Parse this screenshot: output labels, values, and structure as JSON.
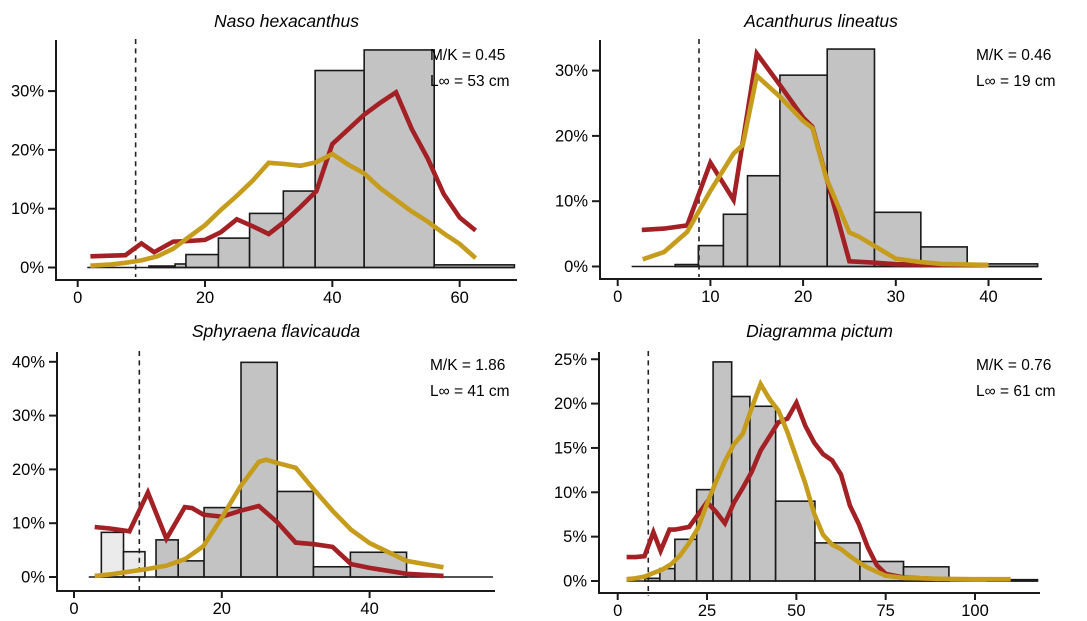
{
  "figure": {
    "background": "#FFFFFF"
  },
  "colors": {
    "red": "#A32025",
    "gold": "#C69C1D",
    "bar_fill": "#C3C3C3",
    "bar_fill_light": "#EBEBEB",
    "bar_stroke": "#1A1A1A",
    "axis": "#1A1A1A",
    "dashed": "#222222",
    "text": "#000000"
  },
  "chart_data": [
    {
      "type": "bar",
      "title": "Naso hexacanthus",
      "mk_label": "M/K = 0.45",
      "linf_label": "L∞ = 53 cm",
      "xlabel": "",
      "ylabel": "",
      "x_tick_values": [
        0,
        20,
        40,
        60
      ],
      "x_tick_labels": [
        "0",
        "20",
        "40",
        "60"
      ],
      "y_tick_values": [
        0,
        10,
        20,
        30
      ],
      "y_tick_labels": [
        "0%",
        "10%",
        "20%",
        "30%"
      ],
      "xlim": [
        -3.4,
        70
      ],
      "ylim": [
        0,
        40
      ],
      "dashed_x": 9.1,
      "baseline_range": [
        1.5,
        68.6
      ],
      "bars": [
        [
          11.2,
          15.3,
          0.25
        ],
        [
          15.3,
          17.0,
          0.6
        ],
        [
          17.0,
          22.1,
          2.2
        ],
        [
          22.1,
          27.0,
          5.0
        ],
        [
          27.0,
          32.3,
          9.2
        ],
        [
          32.3,
          37.3,
          13.0
        ],
        [
          37.3,
          45.0,
          33.5
        ],
        [
          45.0,
          56.0,
          37.0
        ],
        [
          56.0,
          68.6,
          0.45
        ]
      ],
      "red_line": [
        [
          2,
          1.9
        ],
        [
          5,
          2.0
        ],
        [
          7.5,
          2.1
        ],
        [
          10,
          4.1
        ],
        [
          12,
          2.6
        ],
        [
          15,
          4.4
        ],
        [
          17.5,
          4.5
        ],
        [
          20,
          4.7
        ],
        [
          22.5,
          6.0
        ],
        [
          25,
          8.2
        ],
        [
          27.5,
          7.0
        ],
        [
          30,
          5.7
        ],
        [
          32.5,
          7.8
        ],
        [
          35,
          10.3
        ],
        [
          37.5,
          13.0
        ],
        [
          40,
          21.0
        ],
        [
          42.5,
          23.5
        ],
        [
          45,
          26.0
        ],
        [
          47.5,
          28.0
        ],
        [
          50,
          29.8
        ],
        [
          52.5,
          23.5
        ],
        [
          55,
          18.5
        ],
        [
          57.5,
          12.5
        ],
        [
          60,
          8.5
        ],
        [
          62.5,
          6.3
        ]
      ],
      "gold_line": [
        [
          2,
          0.3
        ],
        [
          5,
          0.5
        ],
        [
          7.5,
          0.8
        ],
        [
          10,
          1.2
        ],
        [
          12.5,
          1.9
        ],
        [
          15,
          3.2
        ],
        [
          17.5,
          5.2
        ],
        [
          20,
          7.2
        ],
        [
          22.5,
          9.8
        ],
        [
          25,
          12.2
        ],
        [
          27.5,
          14.8
        ],
        [
          30,
          17.8
        ],
        [
          32.5,
          17.6
        ],
        [
          35,
          17.3
        ],
        [
          37.5,
          17.9
        ],
        [
          40,
          19.3
        ],
        [
          42.5,
          17.5
        ],
        [
          45,
          16.0
        ],
        [
          47.5,
          13.5
        ],
        [
          50,
          11.5
        ],
        [
          52.5,
          9.5
        ],
        [
          55,
          7.8
        ],
        [
          57.5,
          5.8
        ],
        [
          60,
          4.0
        ],
        [
          62.5,
          1.6
        ]
      ]
    },
    {
      "type": "bar",
      "title": "Acanthurus lineatus",
      "mk_label": "M/K = 0.46",
      "linf_label": "L∞ = 19 cm",
      "xlabel": "",
      "ylabel": "",
      "x_tick_values": [
        0,
        10,
        20,
        30,
        40
      ],
      "x_tick_labels": [
        "0",
        "10",
        "20",
        "30",
        "40"
      ],
      "y_tick_values": [
        0,
        10,
        20,
        30
      ],
      "y_tick_labels": [
        "0%",
        "10%",
        "20%",
        "30%"
      ],
      "xlim": [
        -3.5,
        46
      ],
      "ylim": [
        0,
        35
      ],
      "dashed_x": 8.77,
      "baseline_range": [
        1.5,
        45.3
      ],
      "bars": [
        [
          6.2,
          8.7,
          0.3
        ],
        [
          8.7,
          11.4,
          3.2
        ],
        [
          11.4,
          14.0,
          8.0
        ],
        [
          14.0,
          17.5,
          13.9
        ],
        [
          17.5,
          22.6,
          29.3
        ],
        [
          22.6,
          27.7,
          33.3
        ],
        [
          27.7,
          32.7,
          8.3
        ],
        [
          32.7,
          37.7,
          3.0
        ],
        [
          37.7,
          45.3,
          0.4
        ]
      ],
      "red_line": [
        [
          2.6,
          5.6
        ],
        [
          5,
          5.8
        ],
        [
          7.5,
          6.3
        ],
        [
          10,
          15.9
        ],
        [
          12.5,
          10.2
        ],
        [
          15,
          32.6
        ],
        [
          17.5,
          27.8
        ],
        [
          20,
          22.8
        ],
        [
          21,
          21.4
        ],
        [
          25,
          0.8
        ],
        [
          27.5,
          0.6
        ],
        [
          30,
          0.35
        ],
        [
          35,
          0.25
        ],
        [
          40,
          0.2
        ]
      ],
      "gold_line": [
        [
          2.7,
          1.1
        ],
        [
          5,
          2.2
        ],
        [
          7.5,
          5.3
        ],
        [
          10,
          11.6
        ],
        [
          12.5,
          17.3
        ],
        [
          13.5,
          18.6
        ],
        [
          15,
          29.2
        ],
        [
          17.5,
          26.0
        ],
        [
          20,
          22.3
        ],
        [
          21,
          21.2
        ],
        [
          22.5,
          13.5
        ],
        [
          25,
          5.2
        ],
        [
          26,
          4.6
        ],
        [
          30,
          1.2
        ],
        [
          32.5,
          0.7
        ],
        [
          35,
          0.4
        ],
        [
          40,
          0.25
        ]
      ]
    },
    {
      "type": "bar",
      "title": "Sphyraena flavicauda",
      "mk_label": "M/K = 1.86",
      "linf_label": "L∞ = 41 cm",
      "xlabel": "",
      "ylabel": "",
      "x_tick_values": [
        0,
        20,
        40
      ],
      "x_tick_labels": [
        "0",
        "20",
        "40"
      ],
      "y_tick_values": [
        0,
        10,
        20,
        30,
        40
      ],
      "y_tick_labels": [
        "0%",
        "10%",
        "20%",
        "30%",
        "40%"
      ],
      "xlim": [
        -2.3,
        57
      ],
      "ylim": [
        0,
        42
      ],
      "dashed_x": 8.84,
      "baseline_range": [
        2,
        56.7
      ],
      "bars": [
        [
          3.7,
          6.7,
          8.3,
          "light"
        ],
        [
          6.7,
          9.6,
          4.7,
          "light"
        ],
        [
          11.1,
          14.1,
          6.9
        ],
        [
          14.1,
          17.6,
          3.0
        ],
        [
          17.6,
          22.6,
          12.9
        ],
        [
          22.6,
          27.5,
          39.9
        ],
        [
          27.5,
          32.4,
          15.9
        ],
        [
          32.4,
          37.4,
          1.9
        ],
        [
          37.4,
          45.0,
          4.6
        ]
      ],
      "red_line": [
        [
          2.8,
          9.3
        ],
        [
          5,
          9.0
        ],
        [
          7.5,
          8.5
        ],
        [
          10,
          15.7
        ],
        [
          12.5,
          7.1
        ],
        [
          15,
          13.0
        ],
        [
          16,
          12.8
        ],
        [
          17.5,
          11.6
        ],
        [
          20,
          11.2
        ],
        [
          22.5,
          12.3
        ],
        [
          25,
          13.2
        ],
        [
          27.5,
          10.2
        ],
        [
          30,
          6.4
        ],
        [
          32.5,
          6.1
        ],
        [
          35,
          5.6
        ],
        [
          37.5,
          2.4
        ],
        [
          40,
          1.7
        ],
        [
          45,
          0.6
        ],
        [
          50,
          0.2
        ]
      ],
      "gold_line": [
        [
          2.8,
          0.2
        ],
        [
          5,
          0.5
        ],
        [
          7.5,
          1.0
        ],
        [
          10,
          1.5
        ],
        [
          12.5,
          2.1
        ],
        [
          15,
          3.3
        ],
        [
          17.5,
          5.7
        ],
        [
          20,
          11.0
        ],
        [
          22.5,
          16.8
        ],
        [
          25,
          21.4
        ],
        [
          26,
          21.8
        ],
        [
          27.5,
          21.2
        ],
        [
          30,
          20.3
        ],
        [
          32.5,
          16.2
        ],
        [
          35,
          12.3
        ],
        [
          37.5,
          8.8
        ],
        [
          40,
          6.3
        ],
        [
          45,
          3.0
        ],
        [
          50,
          1.8
        ]
      ]
    },
    {
      "type": "bar",
      "title": "Diagramma pictum",
      "mk_label": "M/K = 0.76",
      "linf_label": "L∞ = 61 cm",
      "xlabel": "",
      "ylabel": "",
      "x_tick_values": [
        0,
        25,
        50,
        75,
        100
      ],
      "x_tick_labels": [
        "0",
        "25",
        "50",
        "75",
        "100"
      ],
      "y_tick_values": [
        0,
        5,
        10,
        15,
        20,
        25
      ],
      "y_tick_labels": [
        "0%",
        "5%",
        "10%",
        "15%",
        "20%",
        "25%"
      ],
      "xlim": [
        -5,
        118
      ],
      "ylim": [
        0,
        26
      ],
      "dashed_x": 8.56,
      "baseline_range": [
        2.5,
        117.5
      ],
      "bars": [
        [
          7.6,
          11.8,
          0.3
        ],
        [
          11.8,
          16.0,
          1.4
        ],
        [
          16.0,
          22.1,
          4.7
        ],
        [
          22.1,
          26.7,
          10.3
        ],
        [
          26.7,
          31.9,
          24.7
        ],
        [
          31.9,
          37.0,
          20.8
        ],
        [
          37.0,
          44.2,
          19.7
        ],
        [
          44.2,
          55.2,
          9.0
        ],
        [
          55.2,
          67.8,
          4.3
        ],
        [
          67.8,
          80.0,
          2.2
        ],
        [
          80.0,
          92.7,
          1.6
        ],
        [
          103.5,
          117.5,
          0.15
        ]
      ],
      "red_line": [
        [
          2.5,
          2.7
        ],
        [
          5,
          2.7
        ],
        [
          7.5,
          2.8
        ],
        [
          10,
          5.5
        ],
        [
          12,
          3.4
        ],
        [
          14.5,
          5.8
        ],
        [
          16,
          5.8
        ],
        [
          20,
          6.1
        ],
        [
          22.5,
          7.5
        ],
        [
          25,
          8.9
        ],
        [
          27.5,
          7.8
        ],
        [
          30,
          6.5
        ],
        [
          32.5,
          8.8
        ],
        [
          35,
          10.5
        ],
        [
          37.5,
          12.3
        ],
        [
          40,
          14.7
        ],
        [
          42.5,
          16.3
        ],
        [
          45,
          17.9
        ],
        [
          47.5,
          18.3
        ],
        [
          50,
          20.1
        ],
        [
          52.5,
          17.5
        ],
        [
          55,
          15.6
        ],
        [
          57.5,
          14.3
        ],
        [
          60,
          13.6
        ],
        [
          62.5,
          12.0
        ],
        [
          65,
          8.5
        ],
        [
          67.5,
          6.4
        ],
        [
          70,
          3.8
        ],
        [
          72.5,
          1.8
        ],
        [
          75,
          0.8
        ],
        [
          80,
          0.4
        ],
        [
          85,
          0.3
        ],
        [
          90,
          0.2
        ]
      ],
      "gold_line": [
        [
          2.5,
          0.2
        ],
        [
          5,
          0.3
        ],
        [
          7.5,
          0.5
        ],
        [
          10,
          0.9
        ],
        [
          12.5,
          1.3
        ],
        [
          15,
          1.9
        ],
        [
          17.5,
          2.9
        ],
        [
          20,
          4.3
        ],
        [
          22.5,
          6.0
        ],
        [
          25,
          8.7
        ],
        [
          27.5,
          11.2
        ],
        [
          30,
          13.5
        ],
        [
          32.5,
          15.4
        ],
        [
          35,
          16.6
        ],
        [
          37.5,
          19.5
        ],
        [
          40,
          22.2
        ],
        [
          42.5,
          20.5
        ],
        [
          45,
          19.2
        ],
        [
          47.5,
          16.8
        ],
        [
          50,
          13.9
        ],
        [
          52.5,
          11.0
        ],
        [
          55,
          7.6
        ],
        [
          57.5,
          5.2
        ],
        [
          60,
          4.1
        ],
        [
          62.5,
          3.6
        ],
        [
          65,
          2.8
        ],
        [
          67.5,
          2.1
        ],
        [
          70,
          1.5
        ],
        [
          75,
          0.6
        ],
        [
          80,
          0.35
        ],
        [
          85,
          0.3
        ],
        [
          90,
          0.25
        ],
        [
          100,
          0.2
        ],
        [
          110,
          0.2
        ]
      ]
    }
  ]
}
